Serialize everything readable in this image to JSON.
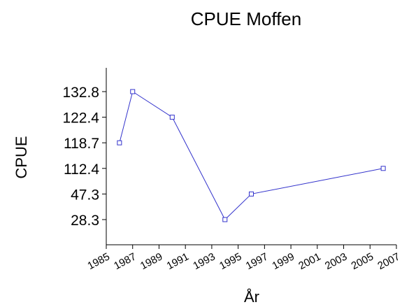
{
  "chart_data": {
    "type": "line",
    "title": "CPUE Moffen",
    "x_label": "År",
    "y_label": "CPUE",
    "x": [
      1986,
      1987,
      1990,
      1994,
      1996,
      2006
    ],
    "values": [
      118.7,
      132.8,
      122.4,
      28.3,
      47.3,
      112.4
    ],
    "color": "#3333cc",
    "xlim": [
      1985,
      2007
    ],
    "xticks": [
      1985,
      1987,
      1989,
      1991,
      1993,
      1995,
      1997,
      1999,
      2001,
      2003,
      2005,
      2007
    ],
    "yscale": "rank",
    "yticks": [
      28.3,
      47.3,
      112.4,
      118.7,
      122.4,
      132.8
    ]
  }
}
